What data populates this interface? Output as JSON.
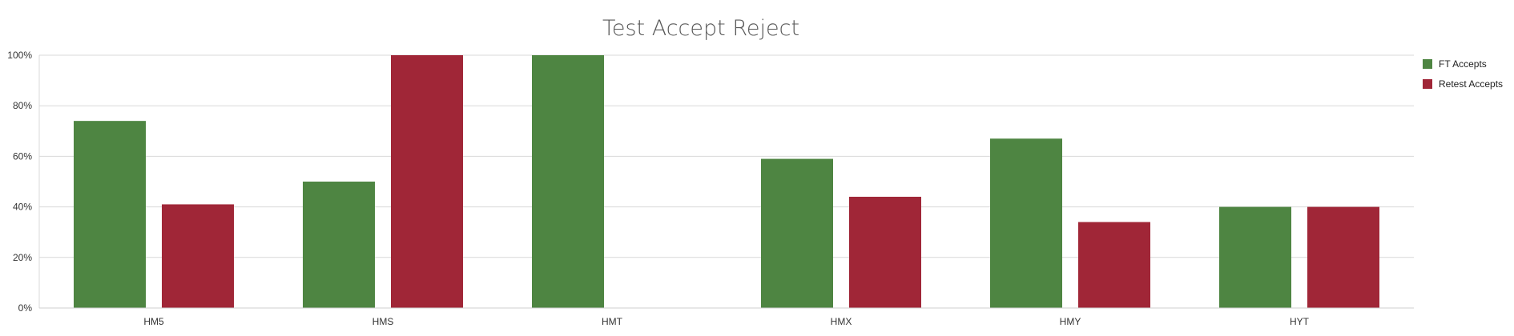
{
  "chart_data": {
    "type": "bar",
    "title": "Test Accept Reject",
    "xlabel": "",
    "ylabel": "",
    "categories": [
      "HM5",
      "HMS",
      "HMT",
      "HMX",
      "HMY",
      "HYT"
    ],
    "category_labels_as_shown": [
      "HM5",
      "HMS",
      "HMT",
      "HMX",
      "HMY",
      "HYT"
    ],
    "series": [
      {
        "name": "FT Accepts",
        "values": [
          74,
          50,
          100,
          59,
          67,
          40
        ]
      },
      {
        "name": "Retest Accepts",
        "values": [
          41,
          100,
          null,
          44,
          34,
          40
        ]
      }
    ],
    "ylim": [
      0,
      100
    ],
    "y_ticks": [
      "0%",
      "20%",
      "40%",
      "60%",
      "80%",
      "100%"
    ],
    "y_tick_values": [
      0,
      20,
      40,
      60,
      80,
      100
    ],
    "grid": true,
    "legend_position": "right-top",
    "colors": {
      "FT Accepts": "#4e8542",
      "Retest Accepts": "#a02637"
    }
  }
}
